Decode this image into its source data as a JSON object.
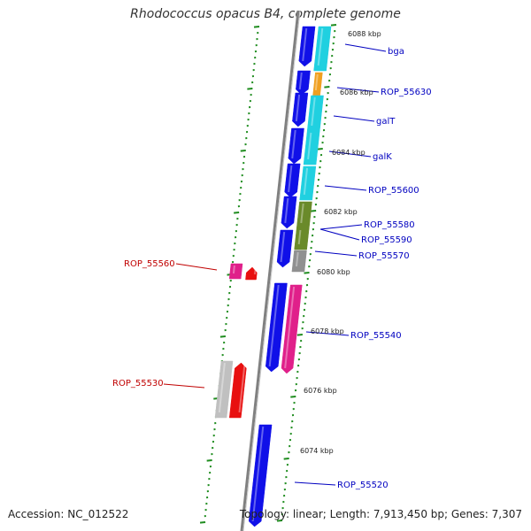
{
  "title": "Rhodococcus opacus B4, complete genome",
  "footer": {
    "accession": "Accession: NC_012522",
    "topology": "Topology: linear; Length: 7,913,450 bp; Genes: 7,307"
  },
  "colors": {
    "backbone": "#808080",
    "tick": "#1e8c1e",
    "forward_gene": "#1010e8",
    "cyan_gene": "#20d0e0",
    "orange_gene": "#f0a020",
    "olive_gene": "#6a8a2a",
    "gray_gene": "#909090",
    "pink_gene": "#e0208a",
    "red_gene": "#e81010",
    "light_gray_gene": "#c0c0c0",
    "forward_label": "#0000c0",
    "reverse_label": "#c00000"
  },
  "kbp_markers": [
    "6088 kbp",
    "6086 kbp",
    "6084 kbp",
    "6082 kbp",
    "6080 kbp",
    "6078 kbp",
    "6076 kbp",
    "6074 kbp"
  ],
  "forward_gene_labels": [
    "bga",
    "ROP_55630",
    "galT",
    "galK",
    "ROP_55600",
    "ROP_55580",
    "ROP_55590",
    "ROP_55570",
    "ROP_55540",
    "ROP_55520"
  ],
  "reverse_gene_labels": [
    "ROP_55560",
    "ROP_55530"
  ]
}
